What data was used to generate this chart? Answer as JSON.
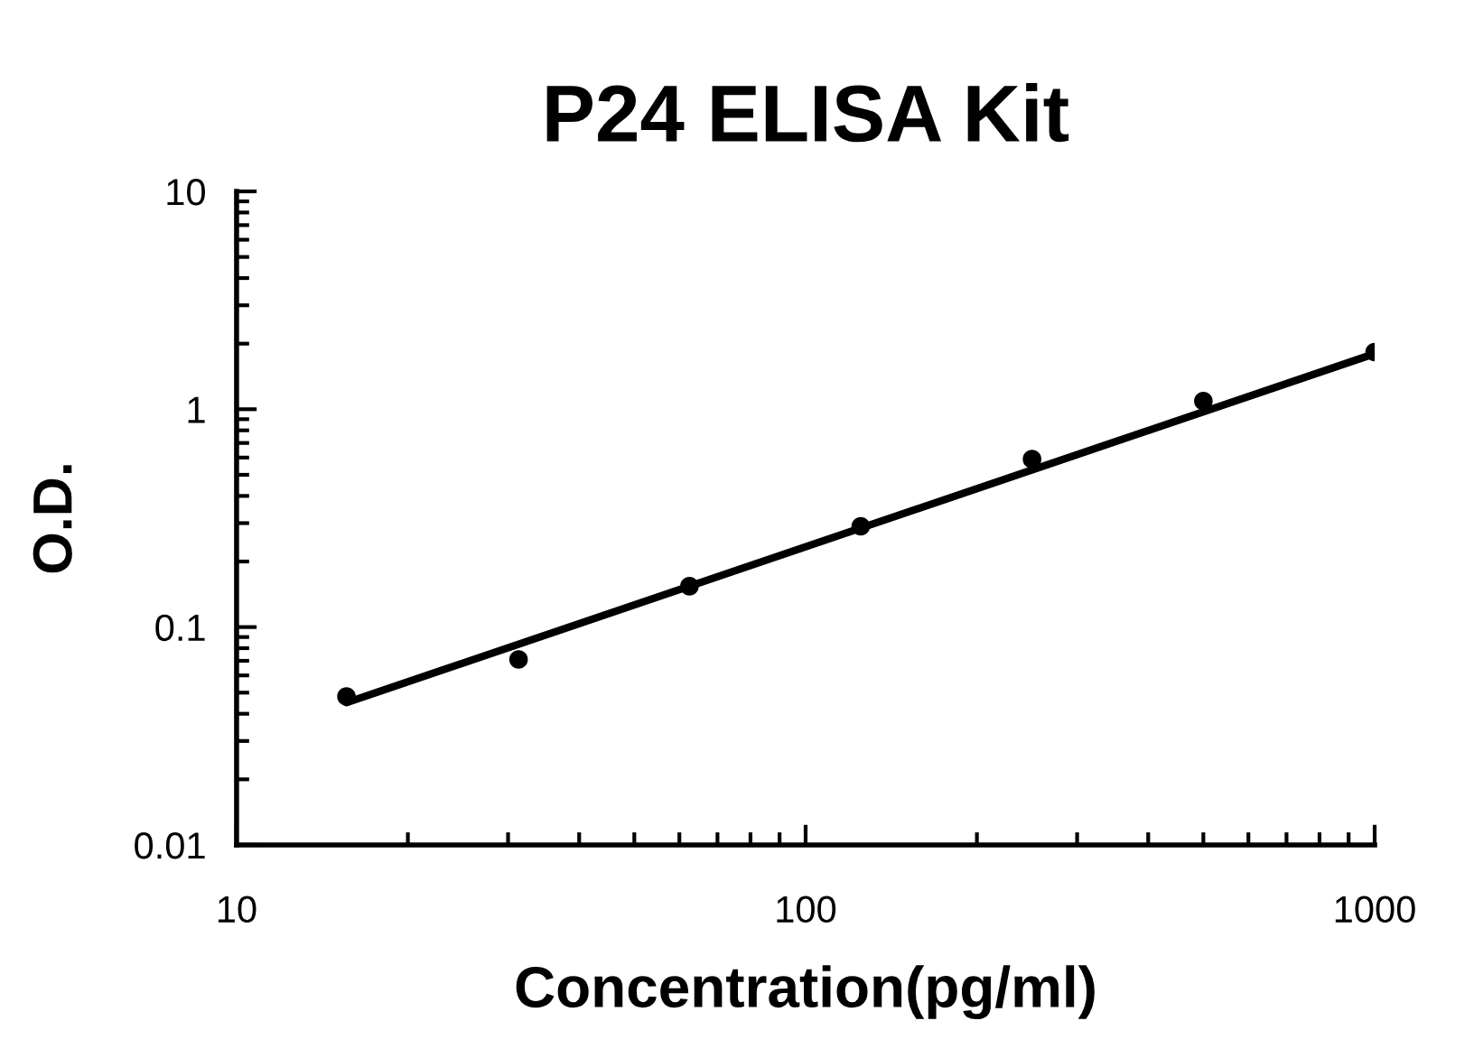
{
  "chart_data": {
    "type": "scatter",
    "title": "P24 ELISA Kit",
    "xlabel": "Concentration(pg/ml)",
    "ylabel": "O.D.",
    "log": "xy",
    "xlim": [
      10,
      1000
    ],
    "ylim": [
      0.01,
      10
    ],
    "xticks": [
      10,
      100,
      1000
    ],
    "yticks": [
      0.01,
      0.1,
      1,
      10
    ],
    "grid": false,
    "series": [
      {
        "color": "#000000",
        "marker": "circle",
        "x": [
          15.6,
          31.3,
          62.5,
          125,
          250,
          500,
          1000
        ],
        "values": [
          0.048,
          0.071,
          0.154,
          0.29,
          0.59,
          1.09,
          1.83
        ]
      },
      {
        "type": "line",
        "color": "#000000",
        "line_style": "solid",
        "marker": "none",
        "x": [
          15.6,
          1000
        ],
        "values": [
          0.045,
          1.8
        ]
      }
    ]
  }
}
